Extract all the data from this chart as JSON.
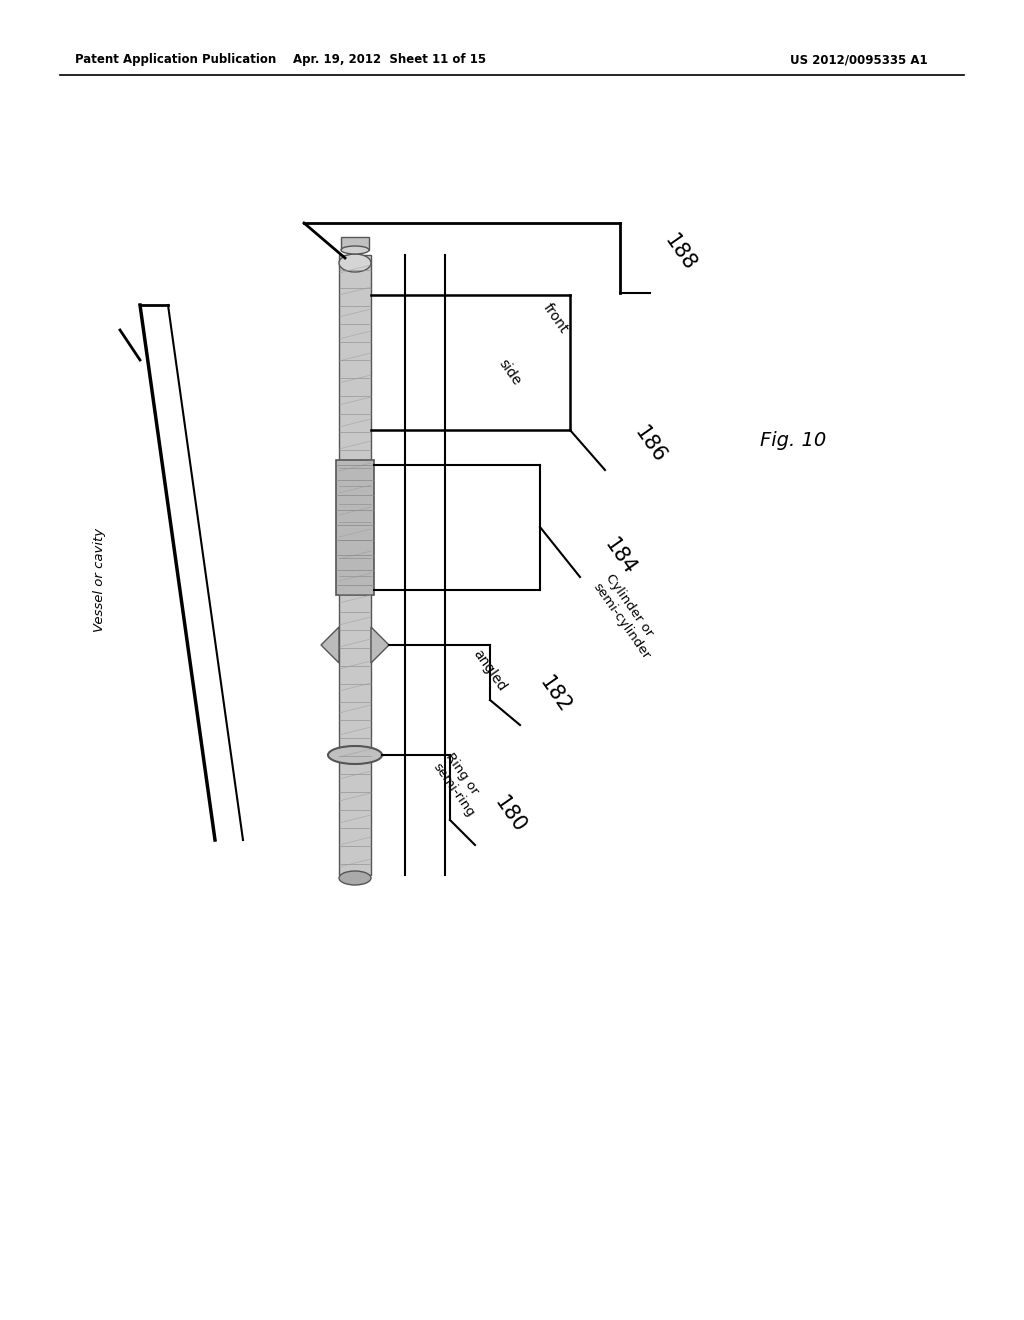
{
  "bg_color": "#ffffff",
  "header_left": "Patent Application Publication",
  "header_center": "Apr. 19, 2012  Sheet 11 of 15",
  "header_right": "US 2012/0095335 A1",
  "fig_label": "Fig. 10",
  "vessel_label": "Vessel or cavity"
}
